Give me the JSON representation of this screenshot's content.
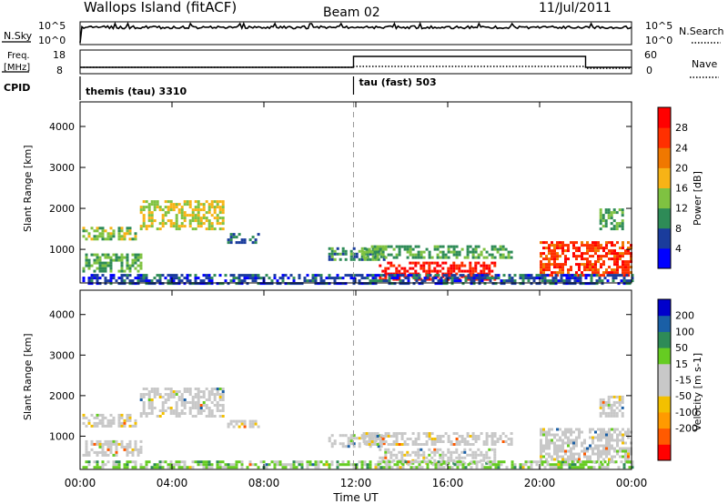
{
  "header": {
    "station": "Wallops Island (fitACF)",
    "beam": "Beam 02",
    "date": "11/Jul/2011"
  },
  "noise_panel": {
    "left_label": "N.Sky",
    "right_label": "N.Search",
    "left_ticks": [
      "10^5",
      "10^0"
    ],
    "right_ticks": [
      "10^5",
      "10^0"
    ]
  },
  "freq_panel": {
    "left_label_top": "Freq.",
    "left_label_bottom": "[MHz]",
    "right_label": "Nave",
    "left_ticks": [
      "18",
      "8"
    ],
    "right_ticks": [
      "60",
      "0"
    ]
  },
  "cpid": {
    "label": "CPID",
    "segments": [
      {
        "name": "themis (tau) 3310",
        "start_hour": 0
      },
      {
        "name": "tau (fast) 503",
        "start_hour": 11.9
      }
    ]
  },
  "colors": {
    "power_scale": [
      "#0000ff",
      "#1a3c9c",
      "#2e8b57",
      "#7fc241",
      "#f7b316",
      "#f07800",
      "#ff3000",
      "#ff0000"
    ],
    "velocity_scale": [
      "#ff0000",
      "#ff5a00",
      "#ff9a00",
      "#f3c000",
      "#c8c8c8",
      "#c8c8c8",
      "#66cc22",
      "#2e8b57",
      "#1a5fa6",
      "#0000cc"
    ]
  },
  "chart_data": [
    {
      "type": "heatmap",
      "title": "",
      "xlabel": "",
      "ylabel": "Slant Range [km]",
      "colorbar_label": "Power [dB]",
      "colorbar_ticks": [
        "4",
        "8",
        "12",
        "16",
        "20",
        "24",
        "28"
      ],
      "x_ticks": [
        "00:00",
        "04:00",
        "08:00",
        "12:00",
        "16:00",
        "20:00",
        "00:00"
      ],
      "y_ticks": [
        "1000",
        "2000",
        "3000",
        "4000"
      ],
      "xlim_hours": [
        0,
        24
      ],
      "ylim_km": [
        180,
        4600
      ],
      "echo_regions": [
        {
          "t": [
            0.1,
            2.4
          ],
          "r": [
            1250,
            1550
          ],
          "power_db": 14
        },
        {
          "t": [
            2.6,
            6.2
          ],
          "r": [
            1500,
            2200
          ],
          "power_db": 16
        },
        {
          "t": [
            0.1,
            2.6
          ],
          "r": [
            500,
            900
          ],
          "power_db": 12
        },
        {
          "t": [
            6.4,
            7.8
          ],
          "r": [
            1200,
            1400
          ],
          "power_db": 8
        },
        {
          "t": [
            10.8,
            13.2
          ],
          "r": [
            750,
            1050
          ],
          "power_db": 10
        },
        {
          "t": [
            12.3,
            18.8
          ],
          "r": [
            800,
            1100
          ],
          "power_db": 12
        },
        {
          "t": [
            13.0,
            18.0
          ],
          "r": [
            300,
            700
          ],
          "power_db": 28
        },
        {
          "t": [
            20.0,
            24.0
          ],
          "r": [
            350,
            1200
          ],
          "power_db": 26
        },
        {
          "t": [
            22.6,
            23.6
          ],
          "r": [
            1500,
            2000
          ],
          "power_db": 12
        },
        {
          "t": [
            0.1,
            24.0
          ],
          "r": [
            200,
            400
          ],
          "power_db": 6
        }
      ]
    },
    {
      "type": "heatmap",
      "title": "",
      "xlabel": "Time UT",
      "ylabel": "Slant Range [km]",
      "colorbar_label": "Velocity [m s-1]",
      "colorbar_ticks": [
        "200",
        "100",
        "50",
        "15",
        "-15",
        "-50",
        "-100",
        "-200"
      ],
      "x_ticks": [
        "00:00",
        "04:00",
        "08:00",
        "12:00",
        "16:00",
        "20:00",
        "00:00"
      ],
      "y_ticks": [
        "1000",
        "2000",
        "3000",
        "4000"
      ],
      "xlim_hours": [
        0,
        24
      ],
      "ylim_km": [
        180,
        4600
      ],
      "echo_regions": [
        {
          "t": [
            0.1,
            2.4
          ],
          "r": [
            1250,
            1550
          ],
          "velocity": 0
        },
        {
          "t": [
            2.6,
            6.2
          ],
          "r": [
            1500,
            2200
          ],
          "velocity": 0
        },
        {
          "t": [
            0.1,
            2.6
          ],
          "r": [
            500,
            900
          ],
          "velocity": 0
        },
        {
          "t": [
            6.4,
            7.8
          ],
          "r": [
            1200,
            1400
          ],
          "velocity": 0
        },
        {
          "t": [
            10.8,
            13.2
          ],
          "r": [
            750,
            1050
          ],
          "velocity": 0
        },
        {
          "t": [
            12.3,
            18.8
          ],
          "r": [
            800,
            1100
          ],
          "velocity": 0
        },
        {
          "t": [
            13.0,
            18.0
          ],
          "r": [
            300,
            700
          ],
          "velocity": 0
        },
        {
          "t": [
            20.0,
            24.0
          ],
          "r": [
            350,
            1200
          ],
          "velocity": 0
        },
        {
          "t": [
            22.6,
            23.6
          ],
          "r": [
            1500,
            2000
          ],
          "velocity": 0
        },
        {
          "t": [
            0.1,
            24.0
          ],
          "r": [
            200,
            400
          ],
          "velocity": 30
        }
      ]
    }
  ]
}
